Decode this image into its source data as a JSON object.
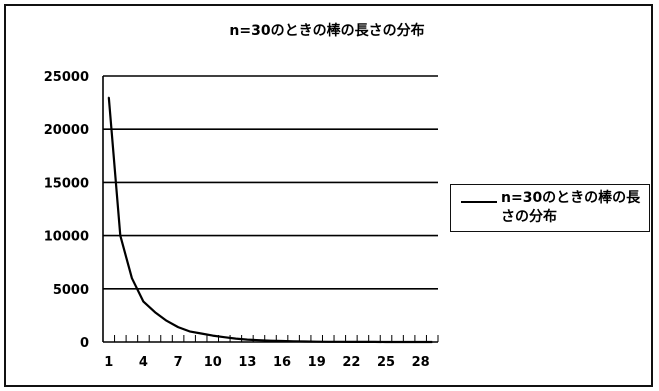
{
  "chart_data": {
    "type": "line",
    "title": "n=30のときの棒の長さの分布",
    "xlabel": "",
    "ylabel": "",
    "x": [
      1,
      2,
      3,
      4,
      5,
      6,
      7,
      8,
      9,
      10,
      11,
      12,
      13,
      14,
      15,
      16,
      17,
      18,
      19,
      20,
      21,
      22,
      23,
      24,
      25,
      26,
      27,
      28,
      29
    ],
    "x_tick_labels": [
      "1",
      "4",
      "7",
      "10",
      "13",
      "16",
      "19",
      "22",
      "25",
      "28"
    ],
    "y_tick_labels": [
      "0",
      "5000",
      "10000",
      "15000",
      "20000",
      "25000"
    ],
    "ylim": [
      0,
      25000
    ],
    "grid": true,
    "legend_position": "right",
    "series": [
      {
        "name": "n=30のときの棒の長さの分布",
        "color": "#000000",
        "values": [
          23000,
          10000,
          6000,
          3800,
          2800,
          2000,
          1400,
          1000,
          800,
          600,
          450,
          320,
          230,
          170,
          120,
          90,
          65,
          45,
          32,
          22,
          15,
          10,
          7,
          5,
          3,
          2,
          1,
          1,
          0
        ]
      }
    ]
  }
}
